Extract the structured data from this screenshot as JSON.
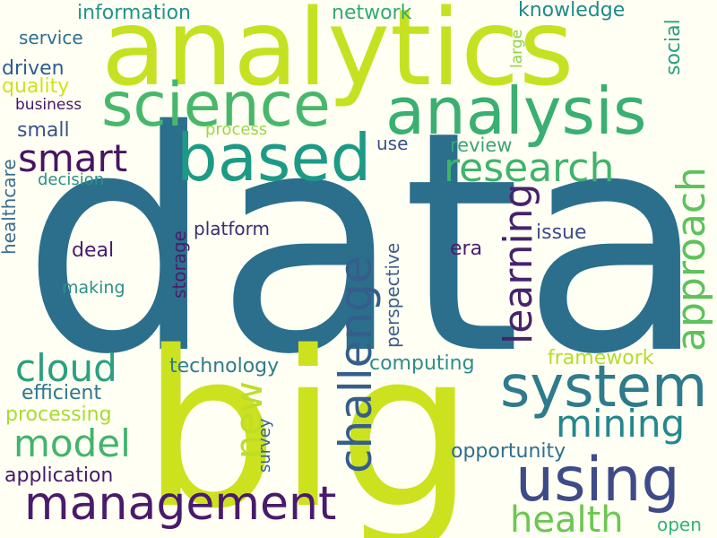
{
  "words": [
    {
      "text": "data",
      "color": "#2b6f8d"
    },
    {
      "text": "big",
      "color": "#cce21f"
    },
    {
      "text": "analytics",
      "color": "#c6e122"
    },
    {
      "text": "analysis",
      "color": "#3aaf72"
    },
    {
      "text": "science",
      "color": "#47b86b"
    },
    {
      "text": "based",
      "color": "#1d9a86"
    },
    {
      "text": "system",
      "color": "#2e7b8c"
    },
    {
      "text": "using",
      "color": "#3e4b89"
    },
    {
      "text": "management",
      "color": "#4a1a6c"
    },
    {
      "text": "research",
      "color": "#40b36d"
    },
    {
      "text": "approach",
      "color": "#5dc25a"
    },
    {
      "text": "challenge",
      "color": "#355e8c"
    },
    {
      "text": "learning",
      "color": "#46236d"
    },
    {
      "text": "smart",
      "color": "#471464"
    },
    {
      "text": "mining",
      "color": "#24878d"
    },
    {
      "text": "health",
      "color": "#6cc653"
    },
    {
      "text": "cloud",
      "color": "#2aa07f"
    },
    {
      "text": "model",
      "color": "#42b46d"
    },
    {
      "text": "new",
      "color": "#bddd28"
    },
    {
      "text": "information",
      "color": "#20938a"
    },
    {
      "text": "network",
      "color": "#35a879"
    },
    {
      "text": "knowledge",
      "color": "#1f8a8c"
    },
    {
      "text": "social",
      "color": "#2a9e84"
    },
    {
      "text": "large",
      "color": "#8fd248"
    },
    {
      "text": "service",
      "color": "#2e6f8e"
    },
    {
      "text": "driven",
      "color": "#2d5d8e"
    },
    {
      "text": "quality",
      "color": "#d0e11f"
    },
    {
      "text": "business",
      "color": "#45166a"
    },
    {
      "text": "small",
      "color": "#3b528b"
    },
    {
      "text": "process",
      "color": "#9ad743"
    },
    {
      "text": "use",
      "color": "#3b4f8b"
    },
    {
      "text": "review",
      "color": "#3aa578"
    },
    {
      "text": "decision",
      "color": "#2e8f8a"
    },
    {
      "text": "healthcare",
      "color": "#3a6d8d"
    },
    {
      "text": "platform",
      "color": "#3d2c73"
    },
    {
      "text": "deal",
      "color": "#481a6c"
    },
    {
      "text": "storage",
      "color": "#4a1d6e"
    },
    {
      "text": "making",
      "color": "#2f8f8a"
    },
    {
      "text": "perspective",
      "color": "#3c5e8c"
    },
    {
      "text": "era",
      "color": "#4b1d6b"
    },
    {
      "text": "issue",
      "color": "#3f4c8a"
    },
    {
      "text": "technology",
      "color": "#2e7b8c"
    },
    {
      "text": "computing",
      "color": "#2e8d8b"
    },
    {
      "text": "framework",
      "color": "#b4dd2b"
    },
    {
      "text": "efficient",
      "color": "#2c778e"
    },
    {
      "text": "processing",
      "color": "#a8db34"
    },
    {
      "text": "survey",
      "color": "#35638d"
    },
    {
      "text": "opportunity",
      "color": "#2f6f8e"
    },
    {
      "text": "application",
      "color": "#451a6b"
    },
    {
      "text": "open",
      "color": "#2fb47c"
    }
  ]
}
